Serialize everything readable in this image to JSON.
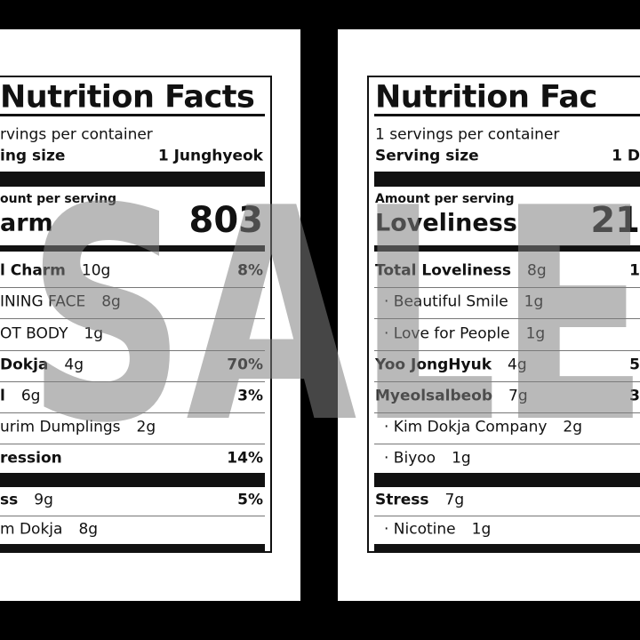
{
  "watermark": "SALE",
  "labels": [
    {
      "title": "Nutrition Facts",
      "servings": "rvings per container",
      "serving_size_label": "ing size",
      "serving_size_value": "1 Junghyeok",
      "amount_label": "ount per serving",
      "main_nutrient": "arm",
      "main_value": "803",
      "rows": [
        {
          "name": "l Charm",
          "amount": "10g",
          "dv": "8%",
          "bold": true
        },
        {
          "name": "INING FACE",
          "amount": "8g",
          "bold": false
        },
        {
          "name": "OT BODY",
          "amount": "1g",
          "bold": false
        },
        {
          "name": "Dokja",
          "amount": "4g",
          "dv": "70%",
          "bold": true
        },
        {
          "name": "l",
          "amount": "6g",
          "dv": "3%",
          "bold": true
        },
        {
          "name": "urim Dumplings",
          "amount": "2g",
          "bold": false
        },
        {
          "name": "ression",
          "dv": "14%",
          "bold": true
        },
        {
          "name": "ss",
          "amount": "9g",
          "dv": "5%",
          "bold": true
        },
        {
          "name": "m Dokja",
          "amount": "8g",
          "bold": false
        }
      ]
    },
    {
      "title": "Nutrition Fac",
      "servings": "1 servings per container",
      "serving_size_label": "Serving size",
      "serving_size_value": "1 D",
      "amount_label": "Amount per serving",
      "main_nutrient": "Loveliness",
      "main_value": "21",
      "rows": [
        {
          "name": "Total Loveliness",
          "amount": "8g",
          "dv": "1",
          "bold": true
        },
        {
          "name": "· Beautiful Smile",
          "amount": "1g",
          "bold": false
        },
        {
          "name": "· Love for People",
          "amount": "1g",
          "bold": false
        },
        {
          "name": "Yoo JongHyuk",
          "amount": "4g",
          "dv": "5",
          "bold": true
        },
        {
          "name": "Myeolsalbeob",
          "amount": "7g",
          "dv": "3",
          "bold": true
        },
        {
          "name": "· Kim Dokja Company",
          "amount": "2g",
          "bold": false
        },
        {
          "name": "· Biyoo",
          "amount": "1g",
          "bold": false
        },
        {
          "name": "Stress",
          "amount": "7g",
          "bold": true
        },
        {
          "name": "· Nicotine",
          "amount": "1g",
          "bold": false
        }
      ]
    }
  ]
}
